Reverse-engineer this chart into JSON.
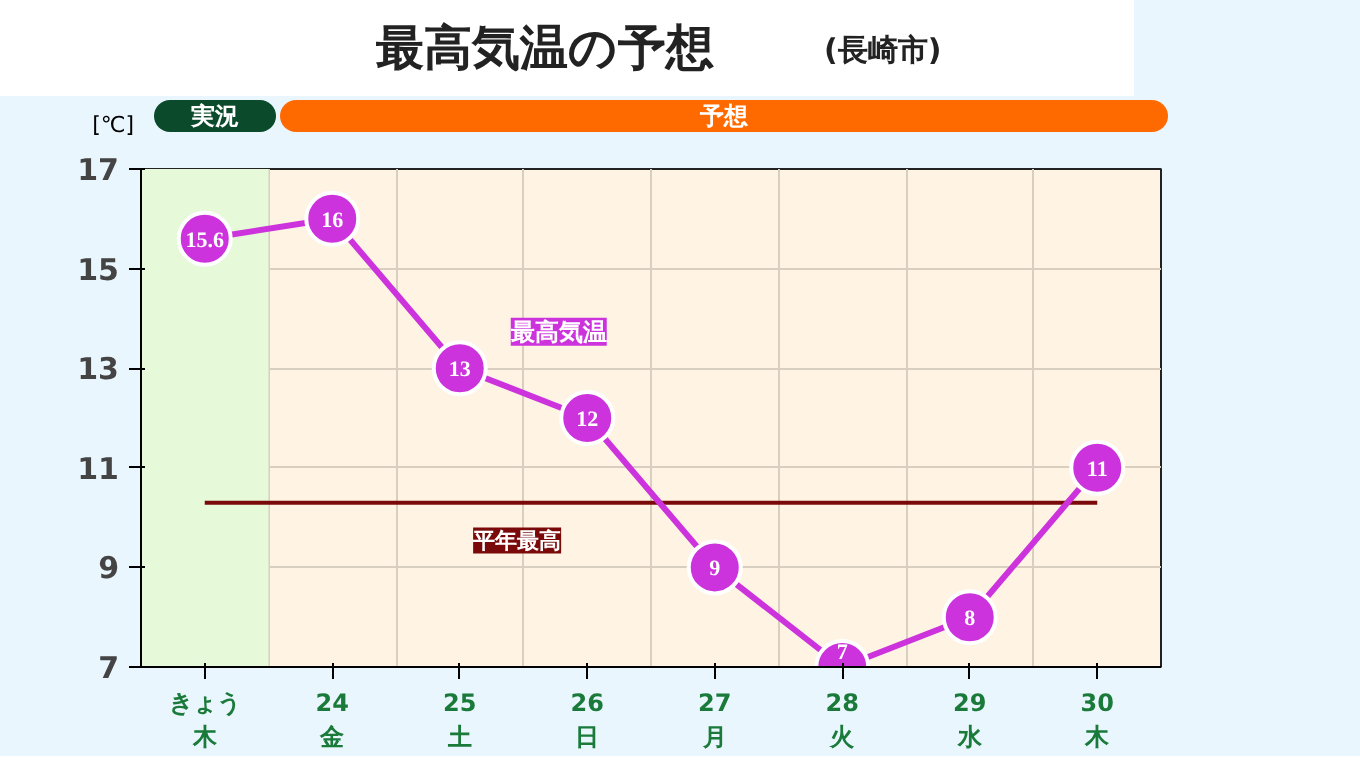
{
  "chart_data": {
    "type": "line",
    "title": "最高気温の予想",
    "subtitle": "(長崎市)",
    "ylabel": "[℃]",
    "categories": [
      "きょう木",
      "24金",
      "25土",
      "26日",
      "27月",
      "28火",
      "29水",
      "30木"
    ],
    "series": [
      {
        "name": "最高気温",
        "color": "#cc33dd",
        "values": [
          15.6,
          16,
          13,
          12,
          9,
          7,
          8,
          11
        ]
      }
    ],
    "ylim": [
      7,
      17
    ],
    "yticks": [
      7,
      9,
      11,
      13,
      15,
      17
    ],
    "grid": true,
    "marker": "circle",
    "line_style": "solid",
    "data_labels": true,
    "ref_lines": [
      {
        "axis": "y",
        "value": 10.3,
        "label": "平年最高",
        "color": "#7a0a0a"
      }
    ],
    "bands": [
      {
        "axis": "x",
        "from": "きょう木",
        "to": "きょう木",
        "color": "#e6f9d9"
      }
    ],
    "annotations": [
      "実況",
      "予想"
    ]
  }
}
